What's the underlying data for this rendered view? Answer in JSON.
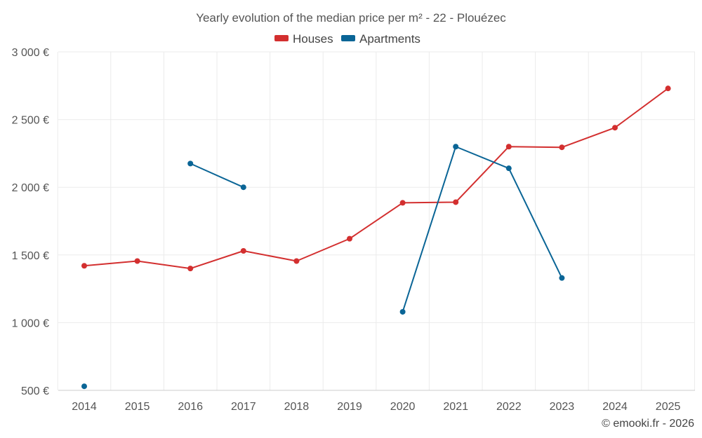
{
  "chart_data": {
    "type": "line",
    "title": "Yearly evolution of the median price per m² - 22 - Plouézec",
    "categories": [
      "2014",
      "2015",
      "2016",
      "2017",
      "2018",
      "2019",
      "2020",
      "2021",
      "2022",
      "2023",
      "2024",
      "2025"
    ],
    "ylim": [
      500,
      3000
    ],
    "yticks": [
      500,
      1000,
      1500,
      2000,
      2500,
      3000
    ],
    "ytick_labels": [
      "500 €",
      "1 000 €",
      "1 500 €",
      "2 000 €",
      "2 500 €",
      "3 000 €"
    ],
    "grid": true,
    "legend_position": "top-center",
    "series": [
      {
        "name": "Houses",
        "color": "#d32f2f",
        "values": [
          1420,
          1455,
          1400,
          1530,
          1455,
          1620,
          1885,
          1890,
          2300,
          2295,
          2440,
          2730
        ]
      },
      {
        "name": "Apartments",
        "color": "#0a6596",
        "values": [
          530,
          null,
          2175,
          2000,
          null,
          null,
          1080,
          2300,
          2140,
          1330,
          null,
          null
        ]
      }
    ]
  },
  "credit": "© emooki.fr - 2026"
}
